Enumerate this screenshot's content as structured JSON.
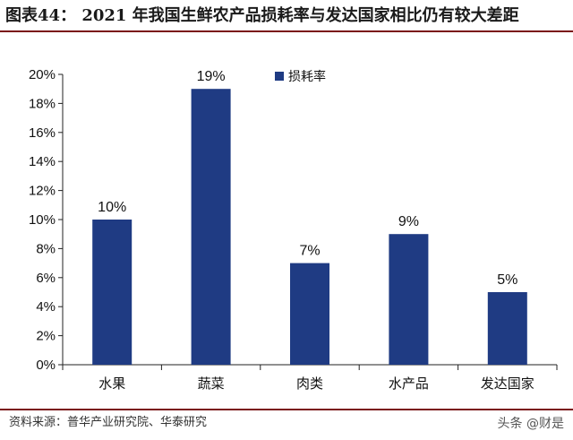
{
  "header": {
    "title": "图表44： 2021 年我国生鲜农产品损耗率与发达国家相比仍有较大差距"
  },
  "footer": {
    "source": "资料来源：普华产业研究院、华泰研究",
    "watermark": "头条 @财是"
  },
  "colors": {
    "bar": "#1f3b83",
    "rule": "#7a1418"
  },
  "chart_data": {
    "type": "bar",
    "categories": [
      "水果",
      "蔬菜",
      "肉类",
      "水产品",
      "发达国家"
    ],
    "series": [
      {
        "name": "损耗率",
        "values": [
          10,
          19,
          7,
          9,
          5
        ]
      }
    ],
    "data_labels": [
      "10%",
      "19%",
      "7%",
      "9%",
      "5%"
    ],
    "yticks": [
      "0%",
      "2%",
      "4%",
      "6%",
      "8%",
      "10%",
      "12%",
      "14%",
      "16%",
      "18%",
      "20%"
    ],
    "ylim": [
      0,
      20
    ],
    "grid": false,
    "legend": "top-center"
  }
}
